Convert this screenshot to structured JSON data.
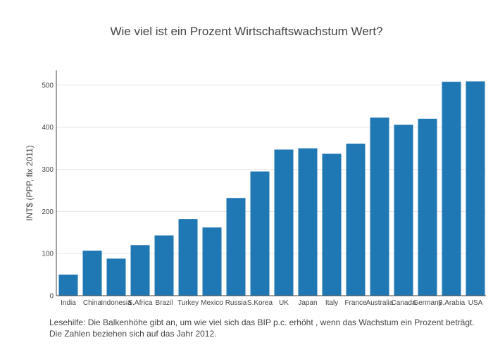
{
  "chart_data": {
    "type": "bar",
    "title": "Wie viel ist ein Prozent Wirtschaftswachstum  Wert?",
    "xlabel": "",
    "ylabel": "INT$ (PPP, fix 2011)",
    "ylim": [
      0,
      535
    ],
    "yticks": [
      0,
      100,
      200,
      300,
      400,
      500
    ],
    "grid": true,
    "bar_color": "#1f77b4",
    "categories": [
      "India",
      "China",
      "Indonesia",
      "S.Africa",
      "Brazil",
      "Turkey",
      "Mexico",
      "Russia",
      "S.Korea",
      "UK",
      "Japan",
      "Italy",
      "France",
      "Australia",
      "Canada",
      "Germany",
      "S.Arabia",
      "USA"
    ],
    "values": [
      50,
      107,
      88,
      120,
      143,
      182,
      162,
      232,
      295,
      347,
      350,
      337,
      361,
      423,
      406,
      420,
      508,
      509
    ]
  },
  "notes": {
    "line1": "Lesehilfe: Die Balkenhöhe gibt an, um wie viel sich das BIP p.c. erhöht , wenn  das Wachstum  ein  Prozent beträgt.",
    "line2": "Die  Zahlen beziehen sich auf das Jahr 2012."
  }
}
